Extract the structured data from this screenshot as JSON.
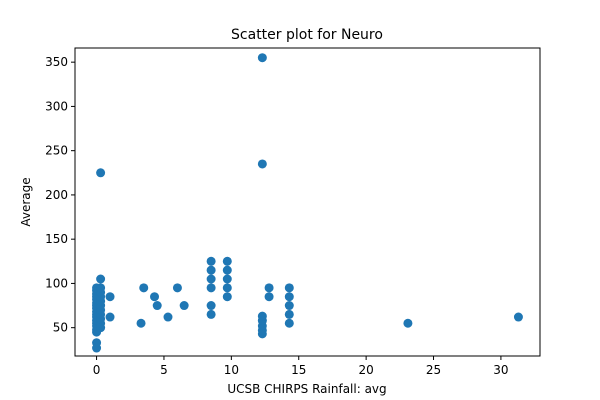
{
  "chart_data": {
    "type": "scatter",
    "title": "Scatter plot for Neuro",
    "xlabel": "UCSB CHIRPS Rainfall: avg",
    "ylabel": "Average",
    "xlim": [
      -1.6,
      32.9
    ],
    "ylim": [
      18,
      366
    ],
    "x_ticks": [
      0,
      5,
      10,
      15,
      20,
      25,
      30
    ],
    "y_ticks": [
      50,
      100,
      150,
      200,
      250,
      300,
      350
    ],
    "grid": false,
    "marker_color": "#1f77b4",
    "series": [
      {
        "points": [
          [
            0,
            27
          ],
          [
            0,
            33
          ],
          [
            0,
            45
          ],
          [
            0,
            48
          ],
          [
            0,
            52
          ],
          [
            0,
            55
          ],
          [
            0,
            58
          ],
          [
            0,
            62
          ],
          [
            0,
            65
          ],
          [
            0,
            68
          ],
          [
            0,
            72
          ],
          [
            0,
            75
          ],
          [
            0,
            78
          ],
          [
            0,
            82
          ],
          [
            0,
            85
          ],
          [
            0,
            88
          ],
          [
            0,
            92
          ],
          [
            0,
            95
          ],
          [
            0.3,
            50
          ],
          [
            0.3,
            55
          ],
          [
            0.3,
            60
          ],
          [
            0.3,
            65
          ],
          [
            0.3,
            70
          ],
          [
            0.3,
            75
          ],
          [
            0.3,
            80
          ],
          [
            0.3,
            85
          ],
          [
            0.3,
            90
          ],
          [
            0.3,
            95
          ],
          [
            0.3,
            105
          ],
          [
            0.3,
            225
          ],
          [
            1,
            62
          ],
          [
            1,
            85
          ],
          [
            3.3,
            55
          ],
          [
            3.5,
            95
          ],
          [
            4.3,
            85
          ],
          [
            4.5,
            75
          ],
          [
            5.3,
            62
          ],
          [
            6,
            95
          ],
          [
            6.5,
            75
          ],
          [
            8.5,
            65
          ],
          [
            8.5,
            75
          ],
          [
            8.5,
            95
          ],
          [
            8.5,
            105
          ],
          [
            8.5,
            115
          ],
          [
            8.5,
            125
          ],
          [
            9.7,
            85
          ],
          [
            9.7,
            95
          ],
          [
            9.7,
            105
          ],
          [
            9.7,
            115
          ],
          [
            9.7,
            125
          ],
          [
            12.3,
            43
          ],
          [
            12.3,
            47
          ],
          [
            12.3,
            52
          ],
          [
            12.3,
            58
          ],
          [
            12.3,
            63
          ],
          [
            12.3,
            235
          ],
          [
            12.3,
            355
          ],
          [
            12.8,
            85
          ],
          [
            12.8,
            95
          ],
          [
            14.3,
            55
          ],
          [
            14.3,
            65
          ],
          [
            14.3,
            75
          ],
          [
            14.3,
            85
          ],
          [
            14.3,
            95
          ],
          [
            23.1,
            55
          ],
          [
            31.3,
            62
          ]
        ]
      }
    ]
  }
}
